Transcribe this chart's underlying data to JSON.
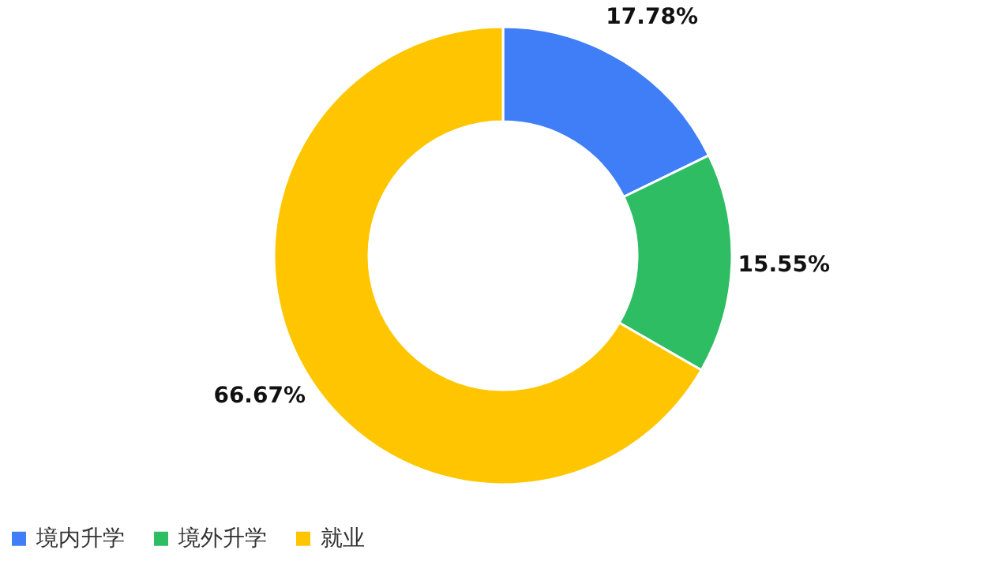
{
  "chart_data": {
    "type": "donut",
    "categories": [
      "境内升学",
      "境外升学",
      "就业"
    ],
    "values": [
      17.78,
      15.55,
      66.67
    ],
    "colors": [
      "#3f7ef7",
      "#2ebd63",
      "#ffc600"
    ],
    "value_labels": [
      "17.78%",
      "15.55%",
      "66.67%"
    ],
    "legend": "bottom"
  }
}
